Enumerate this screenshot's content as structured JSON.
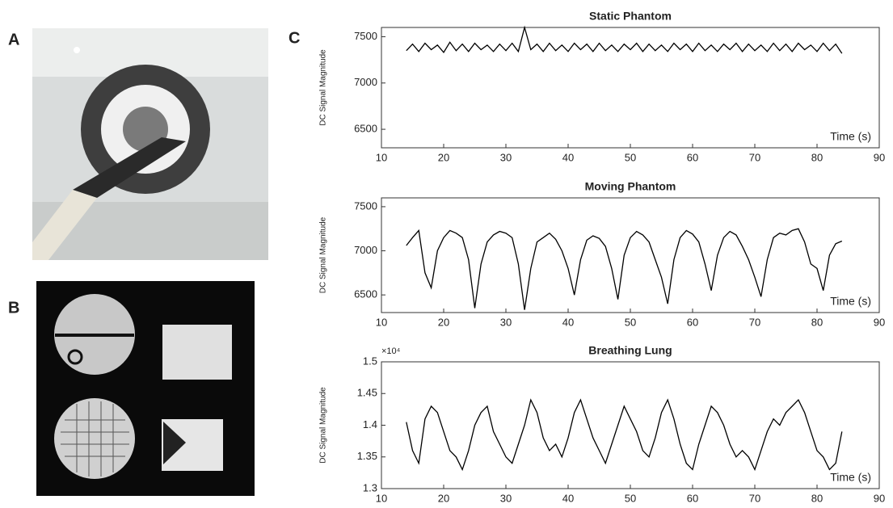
{
  "panel_labels": [
    "A",
    "B",
    "C"
  ],
  "chart_data": [
    {
      "type": "line",
      "title": "Static Phantom",
      "y_label": "DC Signal Magnitude",
      "annotation": "Time (s)",
      "xlim": [
        10,
        90
      ],
      "xticks": [
        10,
        20,
        30,
        40,
        50,
        60,
        70,
        80,
        90
      ],
      "ylim": [
        6300,
        7600
      ],
      "yticks": [
        6500,
        7000,
        7500
      ],
      "x": [
        14,
        15,
        16,
        17,
        18,
        19,
        20,
        21,
        22,
        23,
        24,
        25,
        26,
        27,
        28,
        29,
        30,
        31,
        32,
        33,
        34,
        35,
        36,
        37,
        38,
        39,
        40,
        41,
        42,
        43,
        44,
        45,
        46,
        47,
        48,
        49,
        50,
        51,
        52,
        53,
        54,
        55,
        56,
        57,
        58,
        59,
        60,
        61,
        62,
        63,
        64,
        65,
        66,
        67,
        68,
        69,
        70,
        71,
        72,
        73,
        74,
        75,
        76,
        77,
        78,
        79,
        80,
        81,
        82,
        83,
        84
      ],
      "series": [
        {
          "color": "#000000",
          "values": [
            7350,
            7420,
            7340,
            7430,
            7360,
            7410,
            7330,
            7440,
            7350,
            7420,
            7340,
            7430,
            7360,
            7410,
            7340,
            7420,
            7350,
            7430,
            7340,
            7600,
            7360,
            7420,
            7340,
            7430,
            7350,
            7410,
            7340,
            7430,
            7360,
            7420,
            7340,
            7430,
            7350,
            7410,
            7340,
            7420,
            7360,
            7430,
            7340,
            7420,
            7350,
            7410,
            7340,
            7430,
            7360,
            7420,
            7340,
            7430,
            7350,
            7410,
            7340,
            7420,
            7360,
            7430,
            7340,
            7420,
            7350,
            7410,
            7340,
            7430,
            7350,
            7420,
            7340,
            7430,
            7360,
            7410,
            7340,
            7430,
            7350,
            7420,
            7320
          ]
        }
      ]
    },
    {
      "type": "line",
      "title": "Moving Phantom",
      "y_label": "DC Signal Magnitude",
      "annotation": "Time (s)",
      "xlim": [
        10,
        90
      ],
      "xticks": [
        10,
        20,
        30,
        40,
        50,
        60,
        70,
        80,
        90
      ],
      "ylim": [
        6300,
        7600
      ],
      "yticks": [
        6500,
        7000,
        7500
      ],
      "x": [
        14,
        15,
        16,
        17,
        18,
        19,
        20,
        21,
        22,
        23,
        24,
        25,
        26,
        27,
        28,
        29,
        30,
        31,
        32,
        33,
        34,
        35,
        36,
        37,
        38,
        39,
        40,
        41,
        42,
        43,
        44,
        45,
        46,
        47,
        48,
        49,
        50,
        51,
        52,
        53,
        54,
        55,
        56,
        57,
        58,
        59,
        60,
        61,
        62,
        63,
        64,
        65,
        66,
        67,
        68,
        69,
        70,
        71,
        72,
        73,
        74,
        75,
        76,
        77,
        78,
        79,
        80,
        81,
        82,
        83,
        84
      ],
      "series": [
        {
          "color": "#000000",
          "values": [
            7060,
            7150,
            7230,
            6750,
            6580,
            7000,
            7150,
            7230,
            7200,
            7150,
            6900,
            6350,
            6850,
            7100,
            7180,
            7220,
            7200,
            7150,
            6850,
            6330,
            6800,
            7100,
            7150,
            7200,
            7130,
            7000,
            6800,
            6500,
            6900,
            7120,
            7170,
            7140,
            7050,
            6800,
            6450,
            6950,
            7150,
            7220,
            7180,
            7100,
            6900,
            6700,
            6400,
            6900,
            7150,
            7230,
            7190,
            7100,
            6850,
            6550,
            6950,
            7150,
            7220,
            7180,
            7050,
            6900,
            6700,
            6480,
            6900,
            7150,
            7200,
            7180,
            7230,
            7250,
            7100,
            6850,
            6800,
            6550,
            6950,
            7080,
            7110
          ]
        }
      ]
    },
    {
      "type": "line",
      "title": "Breathing Lung",
      "y_label": "DC Signal Magnitude",
      "annotation": "Time (s)",
      "y_exponent": "×10⁴",
      "xlim": [
        10,
        90
      ],
      "xticks": [
        10,
        20,
        30,
        40,
        50,
        60,
        70,
        80,
        90
      ],
      "ylim": [
        1.3,
        1.5
      ],
      "yticks": [
        1.3,
        1.35,
        1.4,
        1.45,
        1.5
      ],
      "x": [
        14,
        15,
        16,
        17,
        18,
        19,
        20,
        21,
        22,
        23,
        24,
        25,
        26,
        27,
        28,
        29,
        30,
        31,
        32,
        33,
        34,
        35,
        36,
        37,
        38,
        39,
        40,
        41,
        42,
        43,
        44,
        45,
        46,
        47,
        48,
        49,
        50,
        51,
        52,
        53,
        54,
        55,
        56,
        57,
        58,
        59,
        60,
        61,
        62,
        63,
        64,
        65,
        66,
        67,
        68,
        69,
        70,
        71,
        72,
        73,
        74,
        75,
        76,
        77,
        78,
        79,
        80,
        81,
        82,
        83,
        84
      ],
      "series": [
        {
          "color": "#000000",
          "values": [
            1.405,
            1.36,
            1.34,
            1.41,
            1.43,
            1.42,
            1.39,
            1.36,
            1.35,
            1.33,
            1.36,
            1.4,
            1.42,
            1.43,
            1.39,
            1.37,
            1.35,
            1.34,
            1.37,
            1.4,
            1.44,
            1.42,
            1.38,
            1.36,
            1.37,
            1.35,
            1.38,
            1.42,
            1.44,
            1.41,
            1.38,
            1.36,
            1.34,
            1.37,
            1.4,
            1.43,
            1.41,
            1.39,
            1.36,
            1.35,
            1.38,
            1.42,
            1.44,
            1.41,
            1.37,
            1.34,
            1.33,
            1.37,
            1.4,
            1.43,
            1.42,
            1.4,
            1.37,
            1.35,
            1.36,
            1.35,
            1.33,
            1.36,
            1.39,
            1.41,
            1.4,
            1.42,
            1.43,
            1.44,
            1.42,
            1.39,
            1.36,
            1.35,
            1.33,
            1.34,
            1.39
          ]
        }
      ]
    }
  ]
}
